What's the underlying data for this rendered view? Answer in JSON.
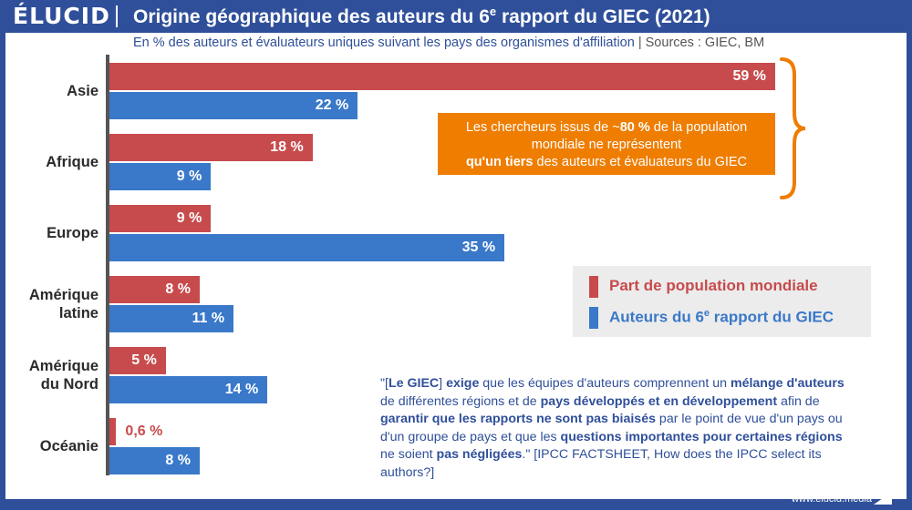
{
  "header": {
    "logo": "ÉLUCID",
    "title_main": "Origine géographique des auteurs du 6",
    "title_sup": "e",
    "title_end": " rapport du GIEC (2021)"
  },
  "subtitle": {
    "text": "En % des auteurs et évaluateurs uniques suivant les pays des organismes d'affiliation",
    "separator": "|",
    "sources": "Sources : GIEC, BM"
  },
  "colors": {
    "population": "#c74b4d",
    "authors": "#3a78c9",
    "brand": "#2f4f9a",
    "accent": "#ef7d00"
  },
  "chart_data": {
    "type": "bar",
    "orientation": "horizontal",
    "categories": [
      [
        "Asie"
      ],
      [
        "Afrique"
      ],
      [
        "Europe"
      ],
      [
        "Amérique",
        "latine"
      ],
      [
        "Amérique",
        "du Nord"
      ],
      [
        "Océanie"
      ]
    ],
    "series": [
      {
        "name": "Part de population mondiale",
        "values": [
          59,
          18,
          9,
          8,
          5,
          0.6
        ],
        "labels": [
          "59 %",
          "18 %",
          "9 %",
          "8 %",
          "5 %",
          "0,6 %"
        ]
      },
      {
        "name_main": "Auteurs du 6",
        "name_sup": "e",
        "name_end": " rapport du GIEC",
        "values": [
          22,
          9,
          35,
          11,
          14,
          8
        ],
        "labels": [
          "22 %",
          "9 %",
          "35 %",
          "11 %",
          "14 %",
          "8 %"
        ]
      }
    ],
    "xlim": [
      0,
      59
    ],
    "legend_position": "right"
  },
  "callout": {
    "line1_a": "Les chercheurs issus de ~",
    "line1_b": "80 %",
    "line1_c": " de la population",
    "line2": "mondiale ne représentent",
    "line3_a": "qu'un tiers",
    "line3_b": " des auteurs et évaluateurs du GIEC"
  },
  "quote": {
    "parts": [
      {
        "t": "\"[",
        "b": false
      },
      {
        "t": "Le GIEC",
        "b": true
      },
      {
        "t": "] ",
        "b": false
      },
      {
        "t": "exige",
        "b": true
      },
      {
        "t": " que les équipes d'auteurs comprennent un ",
        "b": false
      },
      {
        "t": "mélange d'auteurs",
        "b": true
      },
      {
        "t": " de différentes régions et de ",
        "b": false
      },
      {
        "t": "pays développés et en développement",
        "b": true
      },
      {
        "t": " afin de ",
        "b": false
      },
      {
        "t": "garantir que les rapports ne sont pas biaisés",
        "b": true
      },
      {
        "t": " par le point de vue d'un pays ou d'un groupe de pays et que les ",
        "b": false
      },
      {
        "t": "questions importantes pour certaines régions",
        "b": true
      },
      {
        "t": " ne soient ",
        "b": false
      },
      {
        "t": "pas négligées",
        "b": true
      },
      {
        "t": ".\" [IPCC FACTSHEET, How does the IPCC select its authors?]",
        "b": false
      }
    ]
  },
  "footer": {
    "site": "www.elucid.media"
  }
}
